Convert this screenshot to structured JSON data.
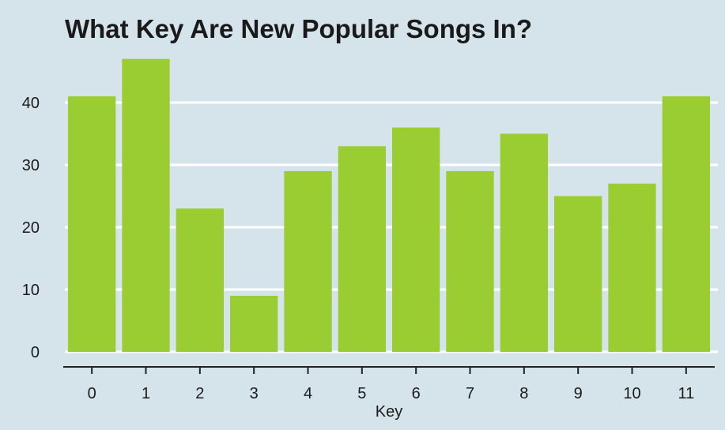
{
  "chart_data": {
    "type": "bar",
    "title": "What Key Are New Popular Songs In?",
    "xlabel": "Key",
    "ylabel": "",
    "categories": [
      "0",
      "1",
      "2",
      "3",
      "4",
      "5",
      "6",
      "7",
      "8",
      "9",
      "10",
      "11"
    ],
    "values": [
      41,
      47,
      23,
      9,
      29,
      33,
      36,
      29,
      35,
      25,
      27,
      41
    ],
    "ylim": [
      0,
      47
    ],
    "yticks": [
      0,
      10,
      20,
      30,
      40
    ],
    "grid": true,
    "legend": "none",
    "colors": {
      "bar": "#9acd32",
      "background": "#d5e4eb",
      "grid": "#ffffff",
      "axis": "#222222"
    }
  }
}
